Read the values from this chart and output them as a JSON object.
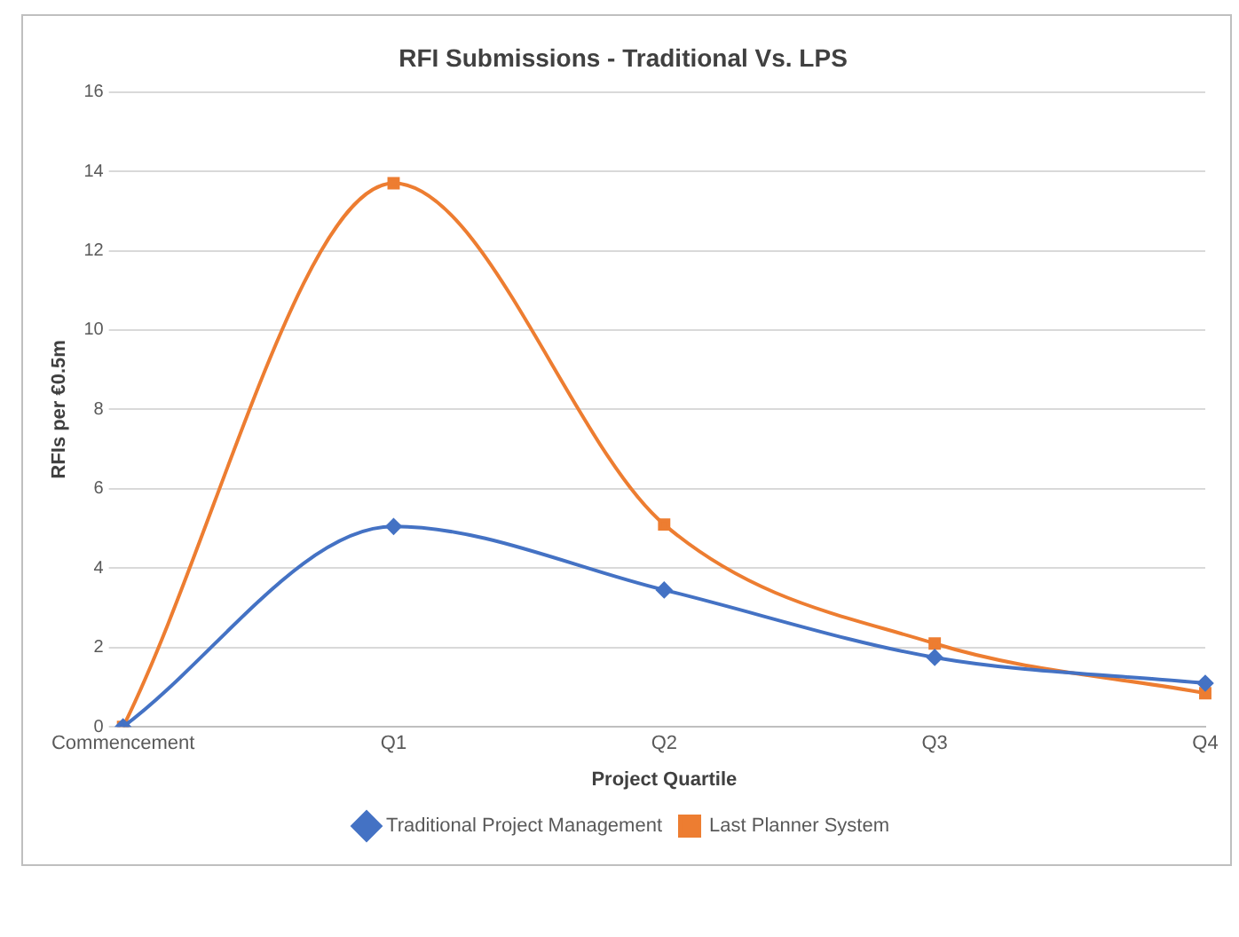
{
  "chart_data": {
    "type": "line",
    "title": "RFI Submissions - Traditional Vs. LPS",
    "xlabel": "Project Quartile",
    "ylabel": "RFIs per €0.5m",
    "categories": [
      "Commencement",
      "Q1",
      "Q2",
      "Q3",
      "Q4"
    ],
    "series": [
      {
        "name": "Traditional Project Management",
        "color": "#4472c4",
        "marker": "diamond",
        "values": [
          0,
          5.05,
          3.45,
          1.75,
          1.1
        ]
      },
      {
        "name": "Last Planner System",
        "color": "#ed7d31",
        "marker": "square",
        "values": [
          0,
          13.7,
          5.1,
          2.1,
          0.85
        ]
      }
    ],
    "ylim": [
      0,
      16
    ],
    "yticks": [
      0,
      2,
      4,
      6,
      8,
      10,
      12,
      14,
      16
    ],
    "grid": "y",
    "legend": "bottom"
  }
}
